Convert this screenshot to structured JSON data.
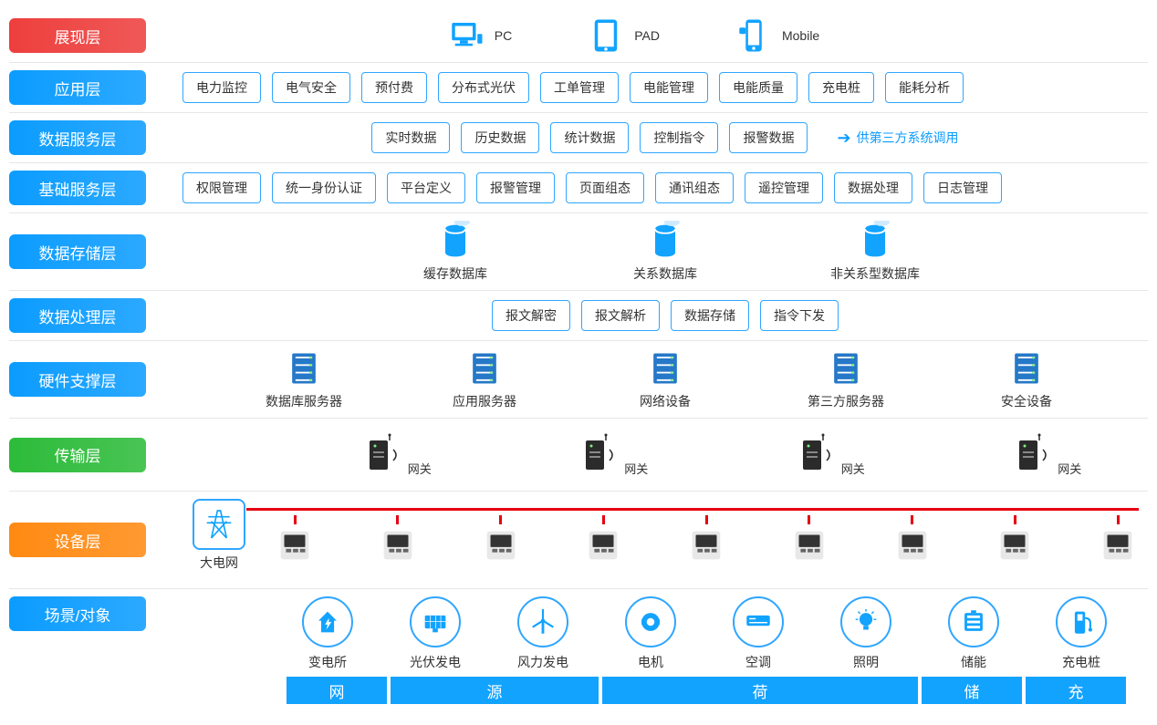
{
  "colors": {
    "red": "#ed3f3d",
    "blue": "#0b9cff",
    "blue_grad": "#12a3ff",
    "green": "#2dbb3a",
    "orange": "#ff8a12",
    "bus_red": "#e60012",
    "border_blue": "#2fa6ff",
    "icon_blue": "#12a3ff",
    "gray_divider": "#e6e6e6"
  },
  "layers": [
    {
      "key": "present",
      "label": "展现层",
      "color": "#ed3f3d"
    },
    {
      "key": "app",
      "label": "应用层",
      "color": "#0b9cff"
    },
    {
      "key": "datasvc",
      "label": "数据服务层",
      "color": "#0b9cff"
    },
    {
      "key": "basesvc",
      "label": "基础服务层",
      "color": "#0b9cff"
    },
    {
      "key": "storage",
      "label": "数据存储层",
      "color": "#0b9cff"
    },
    {
      "key": "process",
      "label": "数据处理层",
      "color": "#0b9cff"
    },
    {
      "key": "hardware",
      "label": "硬件支撑层",
      "color": "#0b9cff"
    },
    {
      "key": "transport",
      "label": "传输层",
      "color": "#2dbb3a"
    },
    {
      "key": "device",
      "label": "设备层",
      "color": "#ff8a12"
    },
    {
      "key": "scene",
      "label": "场景/对象",
      "color": "#0b9cff"
    }
  ],
  "present": [
    {
      "label": "PC",
      "icon": "pc"
    },
    {
      "label": "PAD",
      "icon": "pad"
    },
    {
      "label": "Mobile",
      "icon": "mobile"
    }
  ],
  "app_tags": [
    "电力监控",
    "电气安全",
    "预付费",
    "分布式光伏",
    "工单管理",
    "电能管理",
    "电能质量",
    "充电桩",
    "能耗分析"
  ],
  "datasvc_tags": [
    "实时数据",
    "历史数据",
    "统计数据",
    "控制指令",
    "报警数据"
  ],
  "datasvc_note": "供第三方系统调用",
  "basesvc_tags": [
    "权限管理",
    "统一身份认证",
    "平台定义",
    "报警管理",
    "页面组态",
    "通讯组态",
    "遥控管理",
    "数据处理",
    "日志管理"
  ],
  "storage_items": [
    "缓存数据库",
    "关系数据库",
    "非关系型数据库"
  ],
  "process_tags": [
    "报文解密",
    "报文解析",
    "数据存储",
    "指令下发"
  ],
  "hardware_items": [
    "数据库服务器",
    "应用服务器",
    "网络设备",
    "第三方服务器",
    "安全设备"
  ],
  "gateway_label": "网关",
  "grid_label": "大电网",
  "scene_items": [
    {
      "label": "变电所",
      "icon": "substation"
    },
    {
      "label": "光伏发电",
      "icon": "solar"
    },
    {
      "label": "风力发电",
      "icon": "wind"
    },
    {
      "label": "电机",
      "icon": "motor"
    },
    {
      "label": "空调",
      "icon": "ac"
    },
    {
      "label": "照明",
      "icon": "light"
    },
    {
      "label": "储能",
      "icon": "battery"
    },
    {
      "label": "充电桩",
      "icon": "charger"
    }
  ],
  "scene_groups": [
    {
      "label": "网",
      "span": 1
    },
    {
      "label": "源",
      "span": 2
    },
    {
      "label": "荷",
      "span": 3
    },
    {
      "label": "储",
      "span": 1
    },
    {
      "label": "充",
      "span": 1
    }
  ]
}
